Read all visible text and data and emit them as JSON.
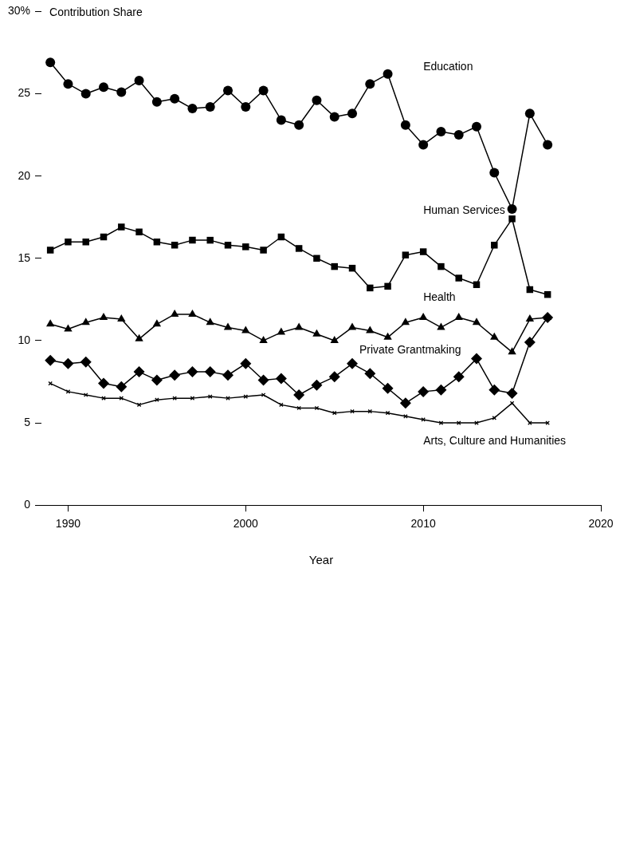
{
  "chart_data": {
    "type": "line",
    "xlabel": "Year",
    "ylabel": "Contribution Share",
    "x": [
      1989,
      1990,
      1991,
      1992,
      1993,
      1994,
      1995,
      1996,
      1997,
      1998,
      1999,
      2000,
      2001,
      2002,
      2003,
      2004,
      2005,
      2006,
      2007,
      2008,
      2009,
      2010,
      2011,
      2012,
      2013,
      2014,
      2015,
      2016,
      2017
    ],
    "xlim": [
      1988.5,
      2020
    ],
    "xticks": [
      1990,
      2000,
      2010,
      2020
    ],
    "ylim": [
      0,
      30
    ],
    "yticks": [
      0,
      5,
      10,
      15,
      20,
      25,
      {
        "value": 30,
        "label": "30%"
      }
    ],
    "series": [
      {
        "name": "Education",
        "color": "#000000",
        "marker": "circle",
        "values": [
          26.9,
          25.6,
          25.0,
          25.4,
          25.1,
          25.8,
          24.5,
          24.7,
          24.1,
          24.2,
          25.2,
          24.2,
          25.2,
          23.4,
          23.1,
          24.6,
          23.6,
          23.8,
          25.6,
          26.2,
          23.1,
          21.9,
          22.7,
          22.5,
          23.0,
          20.2,
          18.0,
          23.8,
          21.9
        ]
      },
      {
        "name": "Human Services",
        "color": "#000000",
        "marker": "square",
        "values": [
          15.5,
          16.0,
          16.0,
          16.3,
          16.9,
          16.6,
          16.0,
          15.8,
          16.1,
          16.1,
          15.8,
          15.7,
          15.5,
          16.3,
          15.6,
          15.0,
          14.5,
          14.4,
          13.2,
          13.3,
          15.2,
          15.4,
          14.5,
          13.8,
          13.4,
          15.8,
          17.4,
          13.1,
          12.8
        ]
      },
      {
        "name": "Health",
        "color": "#000000",
        "marker": "triangle",
        "values": [
          11.0,
          10.7,
          11.1,
          11.4,
          11.3,
          10.1,
          11.0,
          11.6,
          11.6,
          11.1,
          10.8,
          10.6,
          10.0,
          10.5,
          10.8,
          10.4,
          10.0,
          10.8,
          10.6,
          10.2,
          11.1,
          11.4,
          10.8,
          11.4,
          11.1,
          10.2,
          9.3,
          11.3,
          11.4
        ]
      },
      {
        "name": "Private Grantmaking",
        "color": "#000000",
        "marker": "diamond",
        "values": [
          8.8,
          8.6,
          8.7,
          7.4,
          7.2,
          8.1,
          7.6,
          7.9,
          8.1,
          8.1,
          7.9,
          8.6,
          7.6,
          7.7,
          6.7,
          7.3,
          7.8,
          8.6,
          8.0,
          7.1,
          6.2,
          6.9,
          7.0,
          7.8,
          8.9,
          7.0,
          6.8,
          9.9,
          11.4
        ]
      },
      {
        "name": "Arts, Culture and Humanities",
        "color": "#000000",
        "marker": "cross",
        "values": [
          7.4,
          6.9,
          6.7,
          6.5,
          6.5,
          6.1,
          6.4,
          6.5,
          6.5,
          6.6,
          6.5,
          6.6,
          6.7,
          6.1,
          5.9,
          5.9,
          5.6,
          5.7,
          5.7,
          5.6,
          5.4,
          5.2,
          5.0,
          5.0,
          5.0,
          5.3,
          6.2,
          5.0,
          5.0
        ]
      }
    ]
  }
}
